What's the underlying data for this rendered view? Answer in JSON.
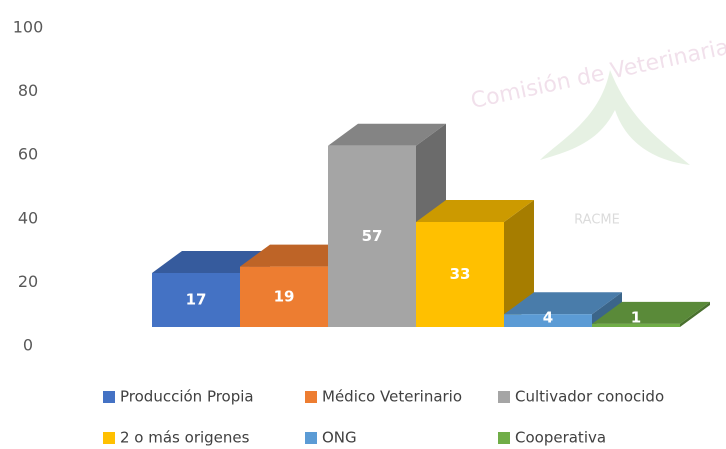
{
  "chart_data": {
    "type": "bar3d",
    "categories": [
      "Producción Propia",
      "Médico Veterinario",
      "Cultivador conocido",
      "2 o más origenes",
      "ONG",
      "Cooperativa"
    ],
    "values": [
      17,
      19,
      57,
      33,
      4,
      1
    ],
    "colors": [
      "#4472c4",
      "#ed7d31",
      "#a5a5a5",
      "#ffc000",
      "#5b9bd5",
      "#70ad47"
    ],
    "ylim": [
      0,
      100
    ],
    "yticks": [
      0,
      20,
      40,
      60,
      80,
      100
    ],
    "watermark": {
      "text": "Comisión de Veterinaria",
      "subtext": "RACME"
    }
  }
}
